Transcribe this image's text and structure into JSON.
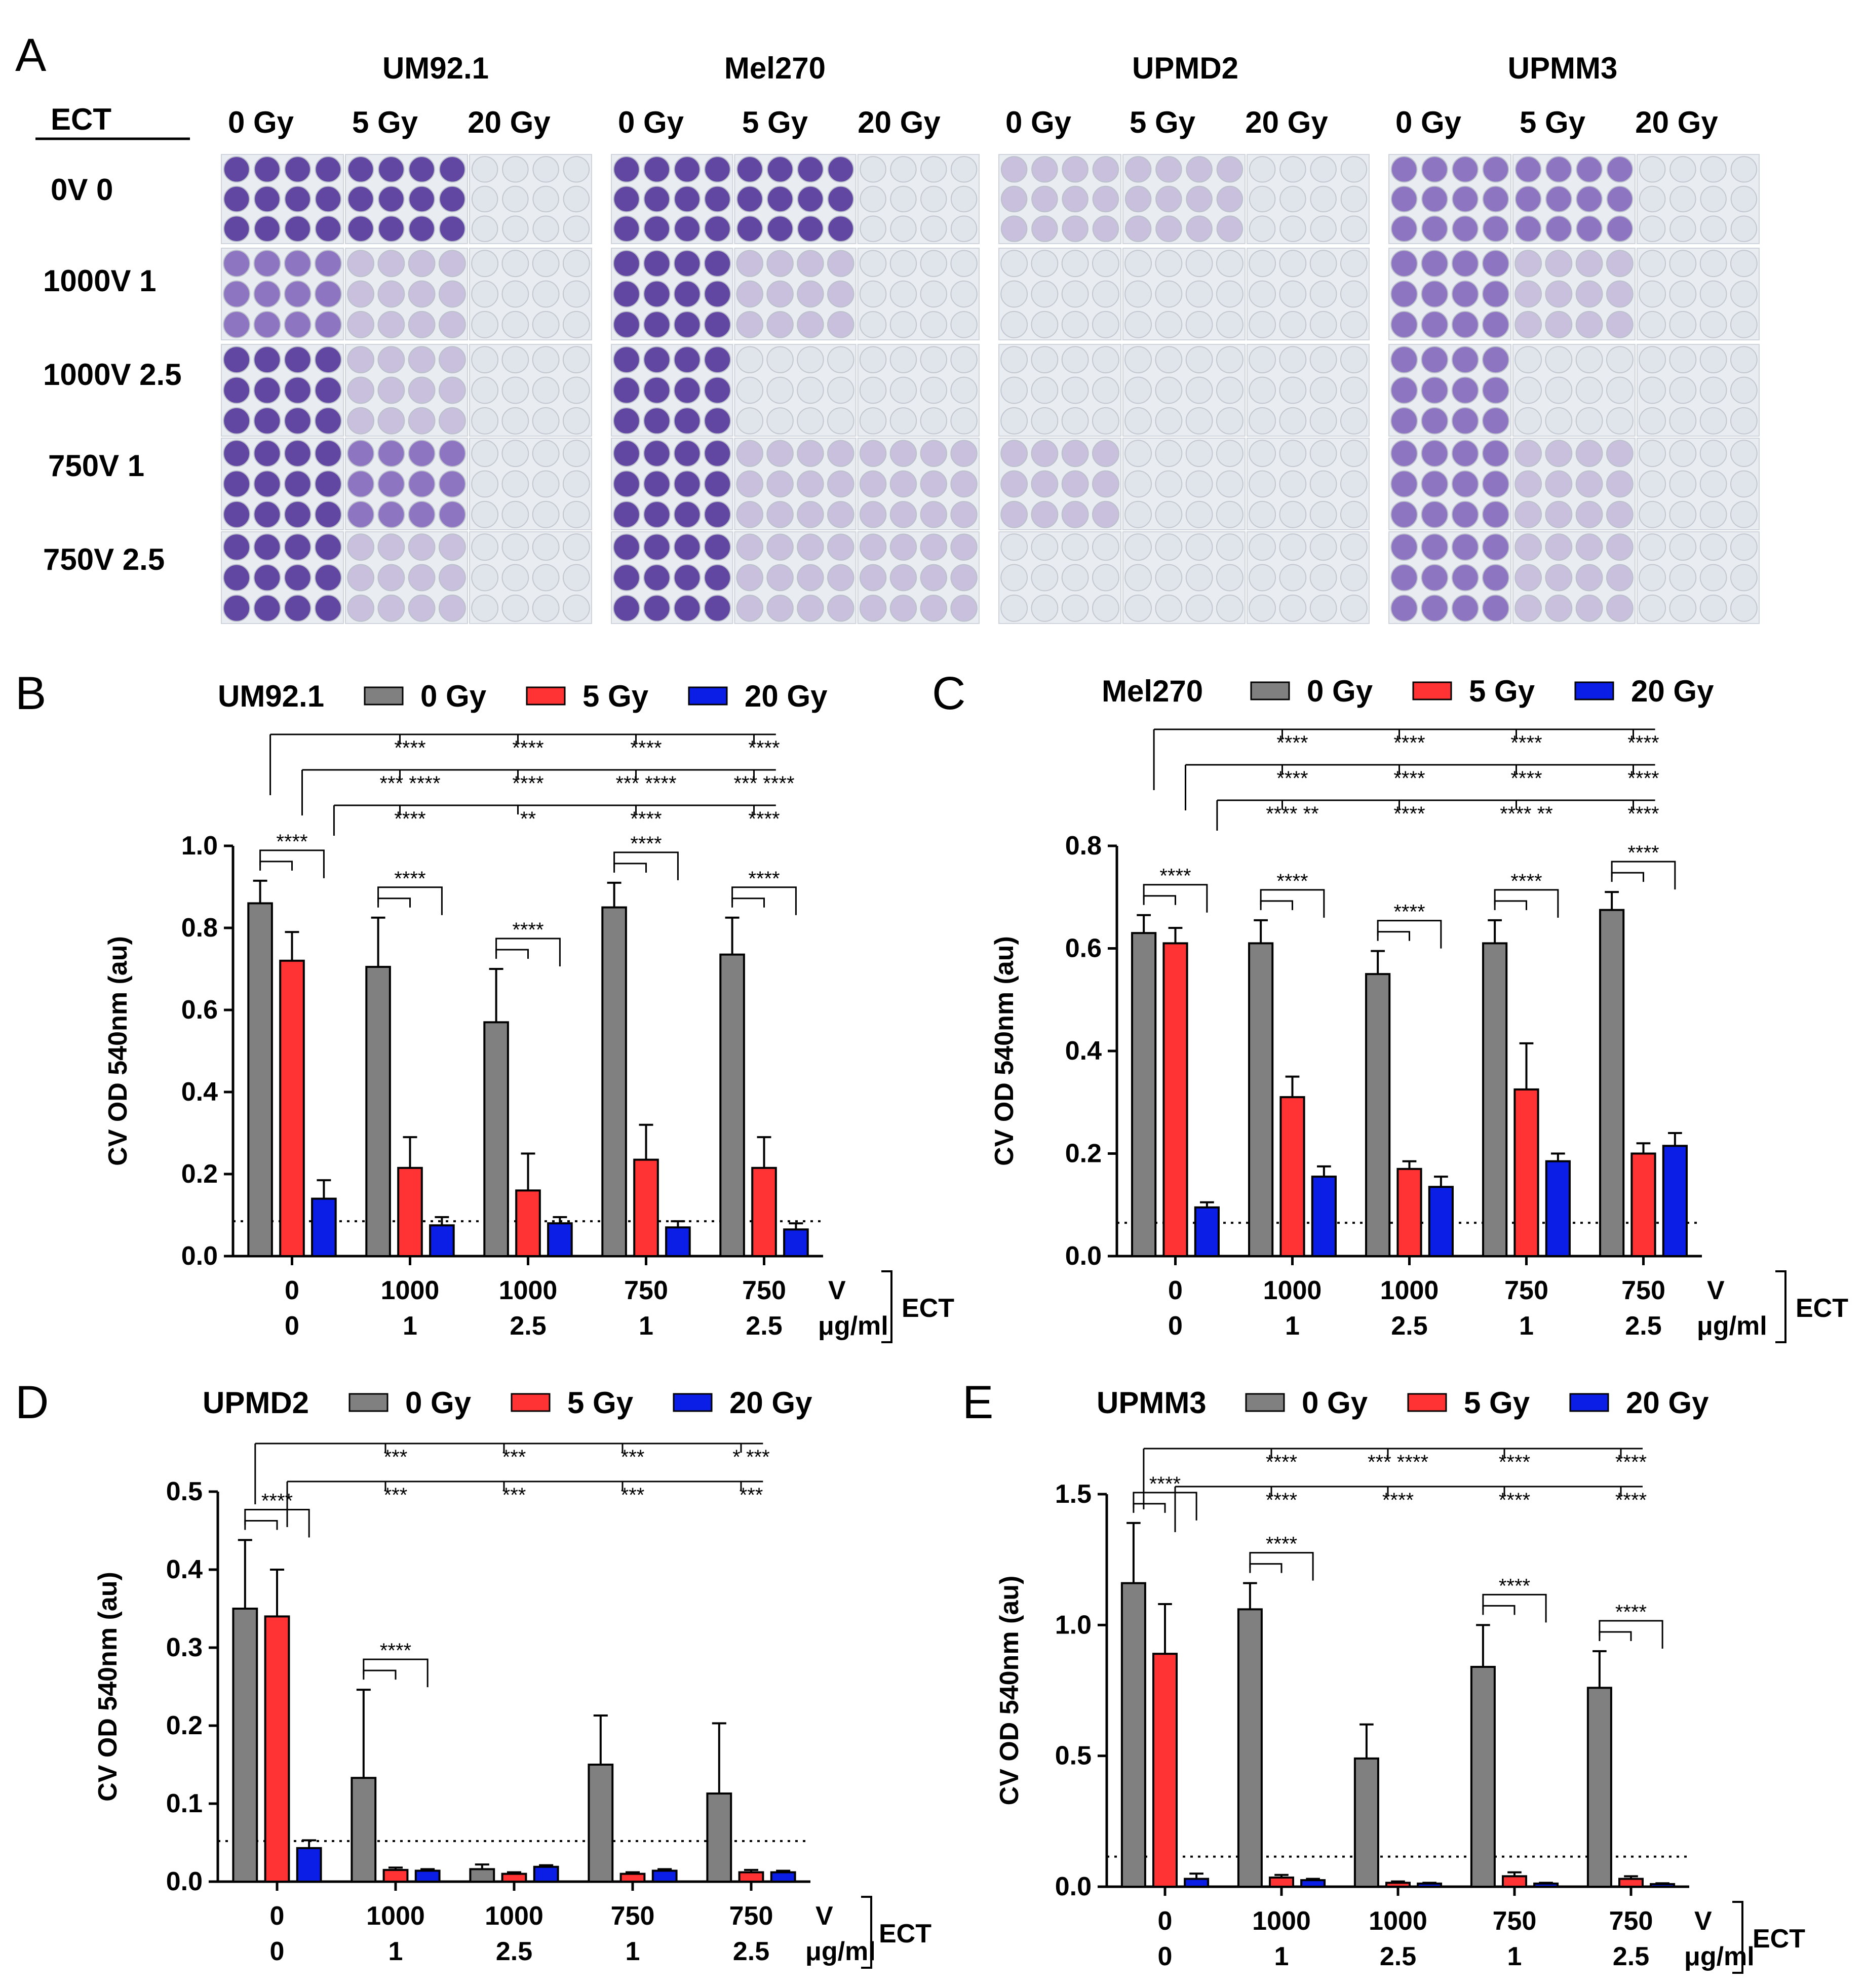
{
  "panel_a": {
    "label": "A",
    "ect_header": "ECT",
    "cell_lines": [
      "UM92.1",
      "Mel270",
      "UPMD2",
      "UPMM3"
    ],
    "doses": [
      "0 Gy",
      "5 Gy",
      "20 Gy"
    ],
    "row_labels": [
      "0V 0",
      "1000V 1",
      "1000V 2.5",
      "750V 1",
      "750V 2.5"
    ],
    "plate_colors": {
      "dense": "#5b3f9e",
      "medium": "#8a6fc0",
      "light": "#c7bedc",
      "empty": "#dfe3ea"
    }
  },
  "colors": {
    "0 Gy": "#808080",
    "5 Gy": "#ff3333",
    "20 Gy": "#0a1ee6"
  },
  "common": {
    "ylabel": "CV OD 540nm (au)",
    "v_labels": [
      "0",
      "1000",
      "1000",
      "750",
      "750"
    ],
    "c_labels": [
      "0",
      "1",
      "2.5",
      "1",
      "2.5"
    ],
    "v_unit": "V",
    "c_unit": "μg/ml",
    "ect": "ECT"
  },
  "chart_data": [
    {
      "panel": "B",
      "title": "UM92.1",
      "type": "bar",
      "categories": [
        "0 V / 0 μg/ml",
        "1000 V / 1 μg/ml",
        "1000 V / 2.5 μg/ml",
        "750 V / 1 μg/ml",
        "750 V / 2.5 μg/ml"
      ],
      "series": [
        {
          "name": "0 Gy",
          "values": [
            0.86,
            0.705,
            0.57,
            0.85,
            0.735
          ],
          "err": [
            0.055,
            0.12,
            0.13,
            0.06,
            0.09
          ]
        },
        {
          "name": "5 Gy",
          "values": [
            0.72,
            0.215,
            0.16,
            0.235,
            0.215
          ],
          "err": [
            0.07,
            0.075,
            0.09,
            0.085,
            0.075
          ]
        },
        {
          "name": "20 Gy",
          "values": [
            0.14,
            0.075,
            0.08,
            0.07,
            0.065
          ],
          "err": [
            0.045,
            0.02,
            0.015,
            0.015,
            0.015
          ]
        }
      ],
      "ylim": [
        0,
        1.0
      ],
      "yticks": [
        "0.0",
        "0.2",
        "0.4",
        "0.6",
        "0.8",
        "1.0"
      ],
      "baseline": 0.085,
      "significance": [
        {
          "text": "****",
          "x1": 0,
          "x2": 0.9,
          "y": 0.03,
          "level": 0.93
        },
        {
          "text": "****",
          "x1": 0.9,
          "x2": 1.22,
          "y": 0.04,
          "level": 0.8
        },
        {
          "text": "***",
          "x1": 0.78,
          "x2": 1.0,
          "y": 0.04,
          "level": 0.06
        },
        {
          "text": "****",
          "x1": 0.78,
          "x2": 1.22,
          "y": 0.04,
          "level": 0.09
        },
        {
          "text": "**",
          "x1": 0.78,
          "x2": 1.0,
          "y": 0.04,
          "level": 0.66
        },
        {
          "text": "***",
          "x1": 0.78,
          "x2": 1.22,
          "y": 0.04,
          "level": 0.73
        }
      ],
      "sig_top": [
        {
          "row": 1,
          "marks": [
            "****",
            "****",
            "****",
            "****"
          ]
        },
        {
          "row": 2,
          "marks": [
            "*** ****",
            "****",
            "*** ****",
            "*** ****"
          ]
        },
        {
          "row": 3,
          "marks": [
            "****",
            "**",
            "****",
            "****"
          ]
        }
      ]
    },
    {
      "panel": "C",
      "title": "Mel270",
      "type": "bar",
      "categories": [
        "0 V / 0 μg/ml",
        "1000 V / 1 μg/ml",
        "1000 V / 2.5 μg/ml",
        "750 V / 1 μg/ml",
        "750 V / 2.5 μg/ml"
      ],
      "series": [
        {
          "name": "0 Gy",
          "values": [
            0.63,
            0.61,
            0.55,
            0.61,
            0.675
          ],
          "err": [
            0.035,
            0.045,
            0.045,
            0.045,
            0.035
          ]
        },
        {
          "name": "5 Gy",
          "values": [
            0.61,
            0.31,
            0.17,
            0.325,
            0.2
          ],
          "err": [
            0.03,
            0.04,
            0.015,
            0.09,
            0.02
          ]
        },
        {
          "name": "20 Gy",
          "values": [
            0.095,
            0.155,
            0.135,
            0.185,
            0.215
          ],
          "err": [
            0.01,
            0.02,
            0.02,
            0.015,
            0.025
          ]
        }
      ],
      "ylim": [
        0,
        0.8
      ],
      "yticks": [
        "0.0",
        "0.2",
        "0.4",
        "0.6",
        "0.8"
      ],
      "baseline": 0.065,
      "sig_top": [
        {
          "row": 1,
          "marks": [
            "****",
            "****",
            "****",
            "****"
          ]
        },
        {
          "row": 2,
          "marks": [
            "****",
            "****",
            "****",
            "****"
          ]
        },
        {
          "row": 3,
          "marks": [
            "**** **",
            "****",
            "**** **",
            "****"
          ]
        }
      ]
    },
    {
      "panel": "D",
      "title": "UPMD2",
      "type": "bar",
      "categories": [
        "0 V / 0 μg/ml",
        "1000 V / 1 μg/ml",
        "1000 V / 2.5 μg/ml",
        "750 V / 1 μg/ml",
        "750 V / 2.5 μg/ml"
      ],
      "series": [
        {
          "name": "0 Gy",
          "values": [
            0.35,
            0.133,
            0.016,
            0.15,
            0.113
          ],
          "err": [
            0.088,
            0.113,
            0.006,
            0.063,
            0.09
          ]
        },
        {
          "name": "5 Gy",
          "values": [
            0.34,
            0.015,
            0.01,
            0.01,
            0.012
          ],
          "err": [
            0.06,
            0.003,
            0.002,
            0.002,
            0.003
          ]
        },
        {
          "name": "20 Gy",
          "values": [
            0.043,
            0.014,
            0.019,
            0.014,
            0.012
          ],
          "err": [
            0.01,
            0.002,
            0.002,
            0.002,
            0.002
          ]
        }
      ],
      "ylim": [
        0,
        0.5
      ],
      "yticks": [
        "0.0",
        "0.1",
        "0.2",
        "0.3",
        "0.4",
        "0.5"
      ],
      "baseline": 0.052,
      "sig_top": [
        {
          "row": 1,
          "marks": [
            "***",
            "***",
            "***",
            "* ***"
          ]
        },
        {
          "row": 2,
          "marks": [
            "***",
            "***",
            "***",
            "***"
          ]
        }
      ]
    },
    {
      "panel": "E",
      "title": "UPMM3",
      "type": "bar",
      "categories": [
        "0 V / 0 μg/ml",
        "1000 V / 1 μg/ml",
        "1000 V / 2.5 μg/ml",
        "750 V / 1 μg/ml",
        "750 V / 2.5 μg/ml"
      ],
      "series": [
        {
          "name": "0 Gy",
          "values": [
            1.16,
            1.06,
            0.49,
            0.84,
            0.76
          ],
          "err": [
            0.23,
            0.1,
            0.13,
            0.16,
            0.14
          ]
        },
        {
          "name": "5 Gy",
          "values": [
            0.89,
            0.035,
            0.015,
            0.04,
            0.03
          ],
          "err": [
            0.19,
            0.01,
            0.005,
            0.015,
            0.01
          ]
        },
        {
          "name": "20 Gy",
          "values": [
            0.03,
            0.025,
            0.012,
            0.012,
            0.01
          ],
          "err": [
            0.02,
            0.005,
            0.003,
            0.003,
            0.003
          ]
        }
      ],
      "ylim": [
        0,
        1.5
      ],
      "yticks": [
        "0.0",
        "0.5",
        "1.0",
        "1.5"
      ],
      "baseline": 0.115,
      "sig_top": [
        {
          "row": 1,
          "marks": [
            "****",
            "*** ****",
            "****",
            "****"
          ]
        },
        {
          "row": 2,
          "marks": [
            "****",
            "****",
            "****",
            "****"
          ]
        }
      ]
    }
  ]
}
